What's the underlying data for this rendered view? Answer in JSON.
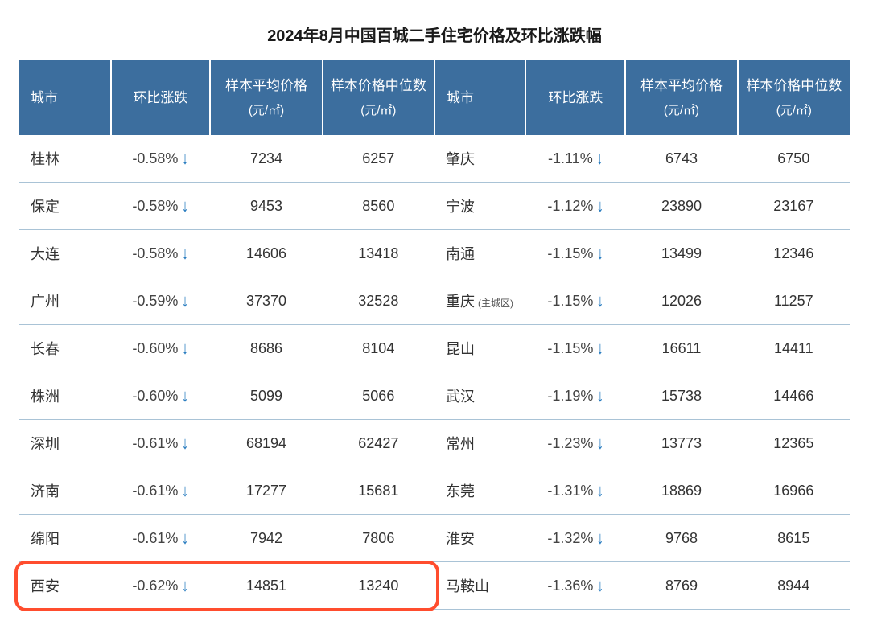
{
  "title": "2024年8月中国百城二手住宅价格及环比涨跌幅",
  "headers": {
    "city": "城市",
    "mom": "环比涨跌",
    "avg_l1": "样本平均价格",
    "med_l1": "样本价格中位数",
    "unit": "(元/㎡)"
  },
  "arrow_color": "#2a7dc0",
  "highlight_color": "#ff4d2e",
  "left_rows": [
    {
      "city": "桂林",
      "pct": "-0.58%",
      "avg": "7234",
      "med": "6257"
    },
    {
      "city": "保定",
      "pct": "-0.58%",
      "avg": "9453",
      "med": "8560"
    },
    {
      "city": "大连",
      "pct": "-0.58%",
      "avg": "14606",
      "med": "13418"
    },
    {
      "city": "广州",
      "pct": "-0.59%",
      "avg": "37370",
      "med": "32528"
    },
    {
      "city": "长春",
      "pct": "-0.60%",
      "avg": "8686",
      "med": "8104"
    },
    {
      "city": "株洲",
      "pct": "-0.60%",
      "avg": "5099",
      "med": "5066"
    },
    {
      "city": "深圳",
      "pct": "-0.61%",
      "avg": "68194",
      "med": "62427"
    },
    {
      "city": "济南",
      "pct": "-0.61%",
      "avg": "17277",
      "med": "15681"
    },
    {
      "city": "绵阳",
      "pct": "-0.61%",
      "avg": "7942",
      "med": "7806"
    },
    {
      "city": "西安",
      "pct": "-0.62%",
      "avg": "14851",
      "med": "13240",
      "highlight": true
    }
  ],
  "right_rows": [
    {
      "city": "肇庆",
      "pct": "-1.11%",
      "avg": "6743",
      "med": "6750"
    },
    {
      "city": "宁波",
      "pct": "-1.12%",
      "avg": "23890",
      "med": "23167"
    },
    {
      "city": "南通",
      "pct": "-1.15%",
      "avg": "13499",
      "med": "12346"
    },
    {
      "city": "重庆",
      "note": "(主城区)",
      "pct": "-1.15%",
      "avg": "12026",
      "med": "11257"
    },
    {
      "city": "昆山",
      "pct": "-1.15%",
      "avg": "16611",
      "med": "14411"
    },
    {
      "city": "武汉",
      "pct": "-1.19%",
      "avg": "15738",
      "med": "14466"
    },
    {
      "city": "常州",
      "pct": "-1.23%",
      "avg": "13773",
      "med": "12365"
    },
    {
      "city": "东莞",
      "pct": "-1.31%",
      "avg": "18869",
      "med": "16966"
    },
    {
      "city": "淮安",
      "pct": "-1.32%",
      "avg": "9768",
      "med": "8615"
    },
    {
      "city": "马鞍山",
      "pct": "-1.36%",
      "avg": "8769",
      "med": "8944"
    }
  ]
}
